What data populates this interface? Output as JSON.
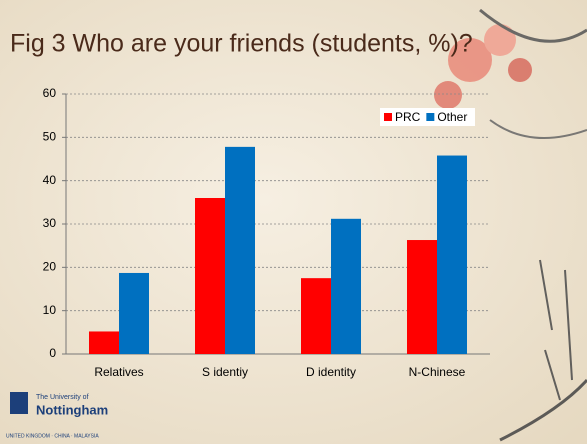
{
  "chart_data": {
    "type": "bar",
    "title": "Fig 3 Who are your friends (students, %)?",
    "categories": [
      "Relatives",
      "S identiy",
      "D identity",
      "N-Chinese"
    ],
    "series": [
      {
        "name": "PRC",
        "color": "#ff0000",
        "values": [
          5.2,
          36,
          17.5,
          26.3
        ]
      },
      {
        "name": "Other",
        "color": "#0070c0",
        "values": [
          18.7,
          47.8,
          31.2,
          45.8
        ]
      }
    ],
    "ylim": [
      0,
      60
    ],
    "yticks": [
      0,
      10,
      20,
      30,
      40,
      50,
      60
    ],
    "grid": true,
    "legend": "top-right"
  },
  "logo": {
    "line1": "The University of",
    "line2": "Nottingham",
    "tagline": "UNITED KINGDOM · CHINA · MALAYSIA"
  }
}
